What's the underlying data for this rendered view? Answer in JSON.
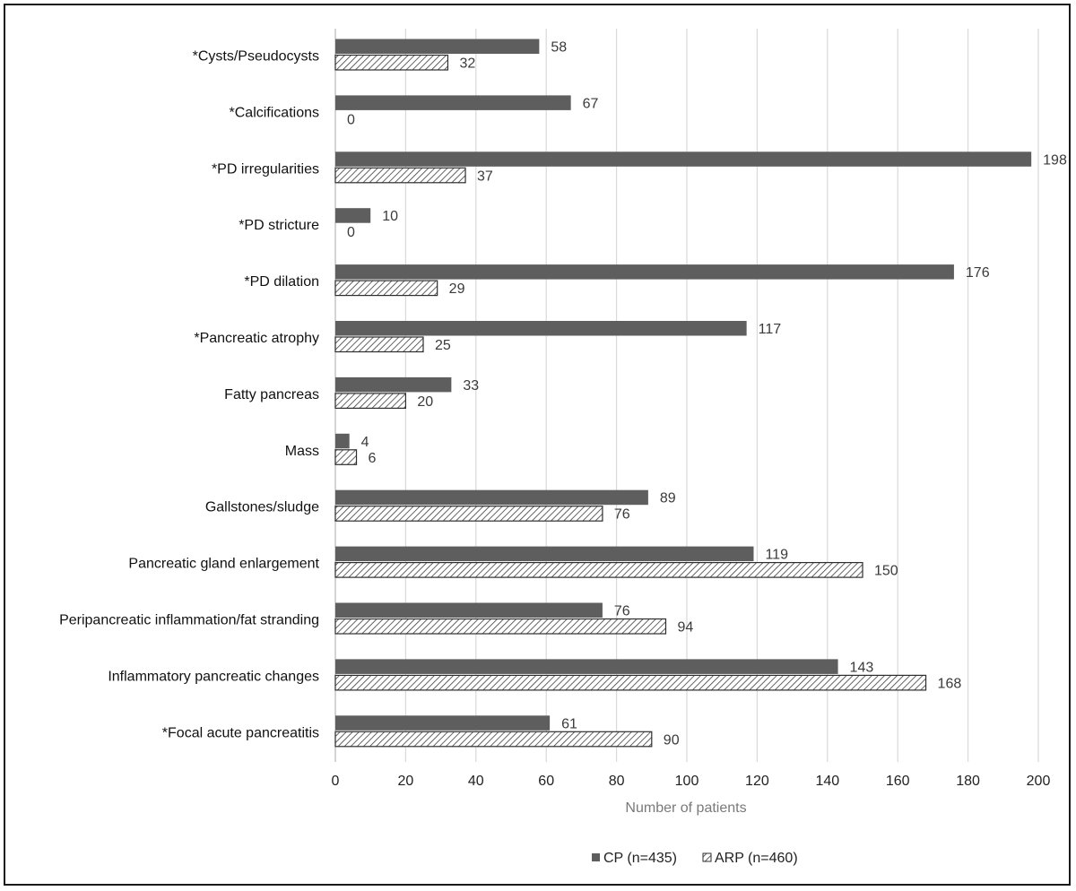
{
  "chart_data": {
    "type": "bar",
    "orientation": "horizontal",
    "categories": [
      "*Cysts/Pseudocysts",
      "*Calcifications",
      "*PD irregularities",
      "*PD stricture",
      "*PD dilation",
      "*Pancreatic atrophy",
      "Fatty pancreas",
      "Mass",
      "Gallstones/sludge",
      "Pancreatic gland enlargement",
      "Peripancreatic inflammation/fat stranding",
      "Inflammatory pancreatic changes",
      "*Focal acute pancreatitis"
    ],
    "series": [
      {
        "name": "CP (n=435)",
        "values": [
          58,
          67,
          198,
          10,
          176,
          117,
          33,
          4,
          89,
          119,
          76,
          143,
          61
        ],
        "color": "#5e5e5e",
        "pattern": "solid"
      },
      {
        "name": "ARP (n=460)",
        "values": [
          32,
          0,
          37,
          0,
          29,
          25,
          20,
          6,
          76,
          150,
          94,
          168,
          90
        ],
        "color": "#4a4a4a",
        "pattern": "diagonal-hatch"
      }
    ],
    "xlabel": "Number of patients",
    "ylabel": "",
    "xlim": [
      0,
      200
    ],
    "xticks": [
      0,
      20,
      40,
      60,
      80,
      100,
      120,
      140,
      160,
      180,
      200
    ],
    "grid": "vertical",
    "legend_position": "bottom-center"
  }
}
